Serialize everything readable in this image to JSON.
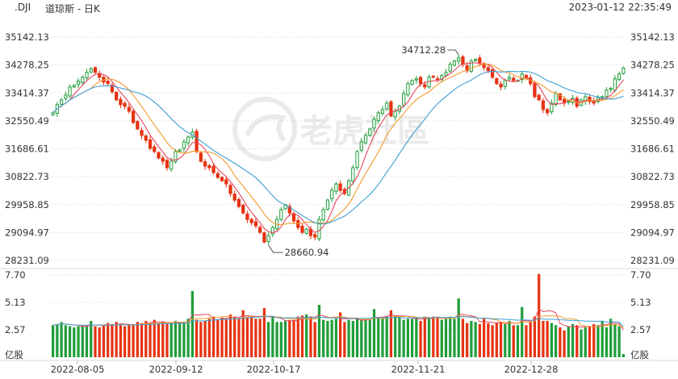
{
  "header": {
    "symbol": ".DJI",
    "name": "道琼斯 - 日K",
    "timestamp": "2023-01-12 22:35:49"
  },
  "watermark": "老虎社區",
  "colors": {
    "up": "#1f9e3a",
    "down": "#e63312",
    "ma1": "#e8455b",
    "ma2": "#f39a2c",
    "ma3": "#3c9fd6",
    "vol_ma1": "#e8455b",
    "vol_ma2": "#f39a2c",
    "vol_ma3": "#3c9fd6"
  },
  "chart_data": {
    "type": "candlestick",
    "price_axis": {
      "ticks": [
        35142.13,
        34278.25,
        33414.37,
        32550.49,
        31686.61,
        30822.73,
        29958.85,
        29094.97,
        28231.09
      ],
      "range": [
        28231.09,
        35142.13
      ]
    },
    "volume_axis": {
      "ticks": [
        "7.70",
        "5.13",
        "2.57"
      ],
      "range": [
        0,
        7.7
      ],
      "unit": "亿股"
    },
    "x_labels": [
      "2022-08-05",
      "2022-09-12",
      "2022-10-17",
      "2022-11-21",
      "2022-12-28"
    ],
    "annotations": [
      {
        "label": "34712.28",
        "kind": "high"
      },
      {
        "label": "28660.94",
        "kind": "low"
      }
    ],
    "close_series": [
      32800,
      33050,
      33200,
      33350,
      33600,
      33650,
      33780,
      33900,
      34050,
      34152,
      34050,
      33900,
      33750,
      33700,
      33450,
      33200,
      33050,
      33000,
      32850,
      32500,
      32300,
      32100,
      31950,
      31700,
      31600,
      31400,
      31300,
      31100,
      31300,
      31600,
      31650,
      31900,
      32050,
      32200,
      31600,
      31300,
      31150,
      31100,
      30950,
      30800,
      30700,
      30600,
      30300,
      30100,
      29900,
      29700,
      29500,
      29400,
      29300,
      29100,
      28800,
      29000,
      29250,
      29500,
      29800,
      29950,
      29700,
      29450,
      29250,
      29100,
      29200,
      29000,
      28950,
      29500,
      29800,
      30100,
      30400,
      30600,
      30400,
      30300,
      30700,
      31100,
      31600,
      31900,
      32100,
      32300,
      32600,
      32800,
      32900,
      33100,
      32700,
      32850,
      33000,
      33400,
      33700,
      33800,
      33850,
      33700,
      33600,
      33900,
      33900,
      33850,
      33950,
      34050,
      34300,
      34400,
      34500,
      34300,
      34100,
      34400,
      34450,
      34350,
      34200,
      34100,
      33900,
      33700,
      33600,
      33800,
      33900,
      33800,
      33800,
      34000,
      33900,
      33700,
      33300,
      33200,
      32900,
      32800,
      33100,
      33400,
      33200,
      33100,
      33150,
      33250,
      33000,
      33200,
      33300,
      33150,
      33100,
      33270,
      33300,
      33500,
      33550,
      33850,
      34000,
      34190
    ],
    "volume_series": [
      3.0,
      3.1,
      3.3,
      3.0,
      2.9,
      2.8,
      2.9,
      2.9,
      3.0,
      3.4,
      2.9,
      2.8,
      3.0,
      3.2,
      3.1,
      3.3,
      3.0,
      2.9,
      3.1,
      3.0,
      3.3,
      3.2,
      3.4,
      3.2,
      3.5,
      3.2,
      3.3,
      3.1,
      3.2,
      3.4,
      3.3,
      3.2,
      3.6,
      6.2,
      3.5,
      3.3,
      3.4,
      3.6,
      3.8,
      3.5,
      3.7,
      3.6,
      4.0,
      3.8,
      3.6,
      4.4,
      3.7,
      3.8,
      3.6,
      3.6,
      4.6,
      3.3,
      3.8,
      3.3,
      3.3,
      3.4,
      3.4,
      3.5,
      3.8,
      3.9,
      4.0,
      3.7,
      3.3,
      4.9,
      3.5,
      3.4,
      3.5,
      3.6,
      4.2,
      3.3,
      3.5,
      3.4,
      3.6,
      3.5,
      3.5,
      3.5,
      4.5,
      3.7,
      3.6,
      3.8,
      4.4,
      3.9,
      3.7,
      3.5,
      3.6,
      3.6,
      3.7,
      3.4,
      3.8,
      3.6,
      3.8,
      3.8,
      3.5,
      3.6,
      3.8,
      3.6,
      5.5,
      3.6,
      3.2,
      3.4,
      3.3,
      3.1,
      3.6,
      3.2,
      3.0,
      3.2,
      3.3,
      3.1,
      3.4,
      3.0,
      3.0,
      4.7,
      3.0,
      3.3,
      3.8,
      7.8,
      3.4,
      3.4,
      3.2,
      3.0,
      2.8,
      2.5,
      2.9,
      3.1,
      3.0,
      2.6,
      2.8,
      2.9,
      3.1,
      3.0,
      3.4,
      2.8,
      3.6,
      3.1,
      2.9,
      0.3
    ]
  },
  "ui_meta": {
    "volume_unit_label": "亿股"
  }
}
